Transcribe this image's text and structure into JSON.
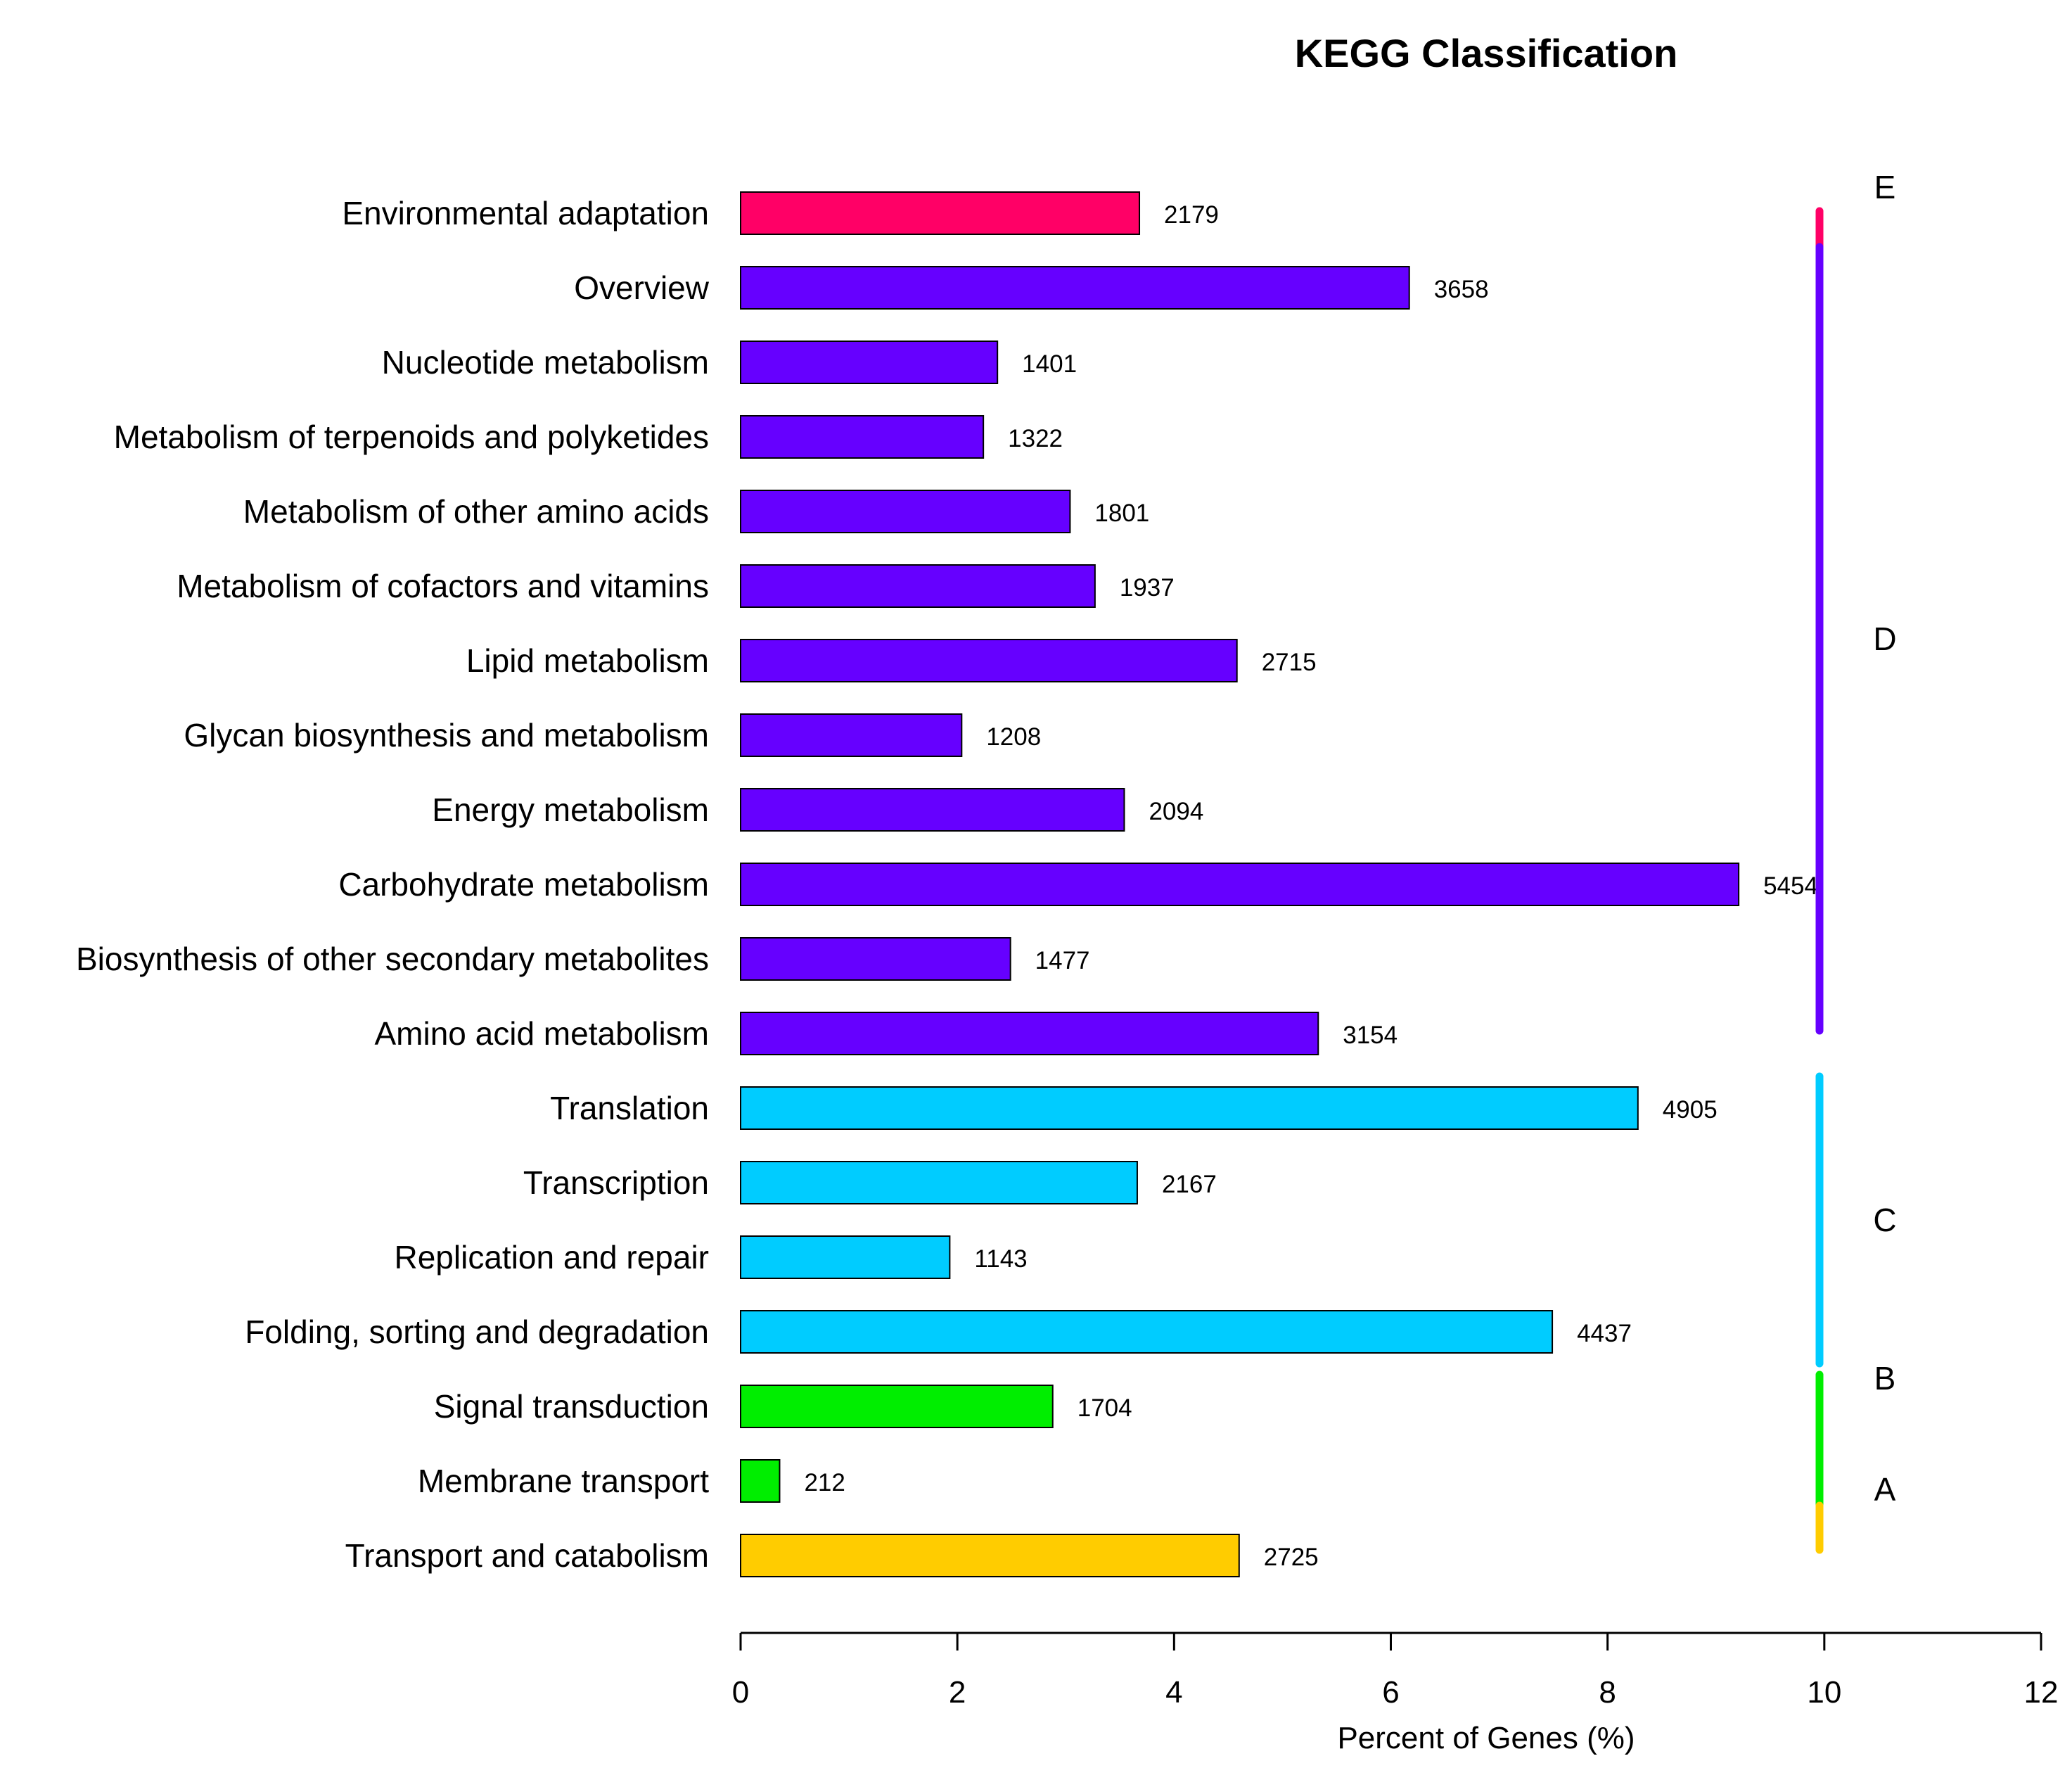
{
  "chart_data": {
    "type": "bar",
    "orientation": "horizontal",
    "title": "KEGG Classification",
    "xlabel": "Percent of Genes (%)",
    "ylabel": "",
    "xlim": [
      0,
      12
    ],
    "xticks": [
      "0",
      "2",
      "4",
      "6",
      "8",
      "10",
      "12"
    ],
    "grid": false,
    "categories": [
      "Environmental adaptation",
      "Overview",
      "Nucleotide metabolism",
      "Metabolism of terpenoids and polyketides",
      "Metabolism of other amino acids",
      "Metabolism of cofactors and vitamins",
      "Lipid metabolism",
      "Glycan biosynthesis and metabolism",
      "Energy metabolism",
      "Carbohydrate metabolism",
      "Biosynthesis of other secondary metabolites",
      "Amino acid metabolism",
      "Translation",
      "Transcription",
      "Replication and repair",
      "Folding, sorting and degradation",
      "Signal transduction",
      "Membrane transport",
      "Transport and catabolism"
    ],
    "values": [
      3.68,
      6.17,
      2.37,
      2.24,
      3.04,
      3.27,
      4.58,
      2.04,
      3.54,
      9.21,
      2.49,
      5.33,
      8.28,
      3.66,
      1.93,
      7.49,
      2.88,
      0.36,
      4.6
    ],
    "value_labels": [
      "2179",
      "3658",
      "1401",
      "1322",
      "1801",
      "1937",
      "2715",
      "1208",
      "2094",
      "5454",
      "1477",
      "3154",
      "4905",
      "2167",
      "1143",
      "4437",
      "1704",
      "212",
      "2725"
    ],
    "bar_groups": [
      "E",
      "D",
      "D",
      "D",
      "D",
      "D",
      "D",
      "D",
      "D",
      "D",
      "D",
      "D",
      "C",
      "C",
      "C",
      "C",
      "B",
      "B",
      "A"
    ],
    "groups": [
      {
        "name": "E",
        "color": "#FF0066",
        "first": 0,
        "last": 0
      },
      {
        "name": "D",
        "color": "#6600FF",
        "first": 1,
        "last": 11
      },
      {
        "name": "C",
        "color": "#00CCFF",
        "first": 12,
        "last": 15
      },
      {
        "name": "B",
        "color": "#00EE00",
        "first": 16,
        "last": 17
      },
      {
        "name": "A",
        "color": "#FFCC00",
        "first": 18,
        "last": 18
      }
    ]
  }
}
